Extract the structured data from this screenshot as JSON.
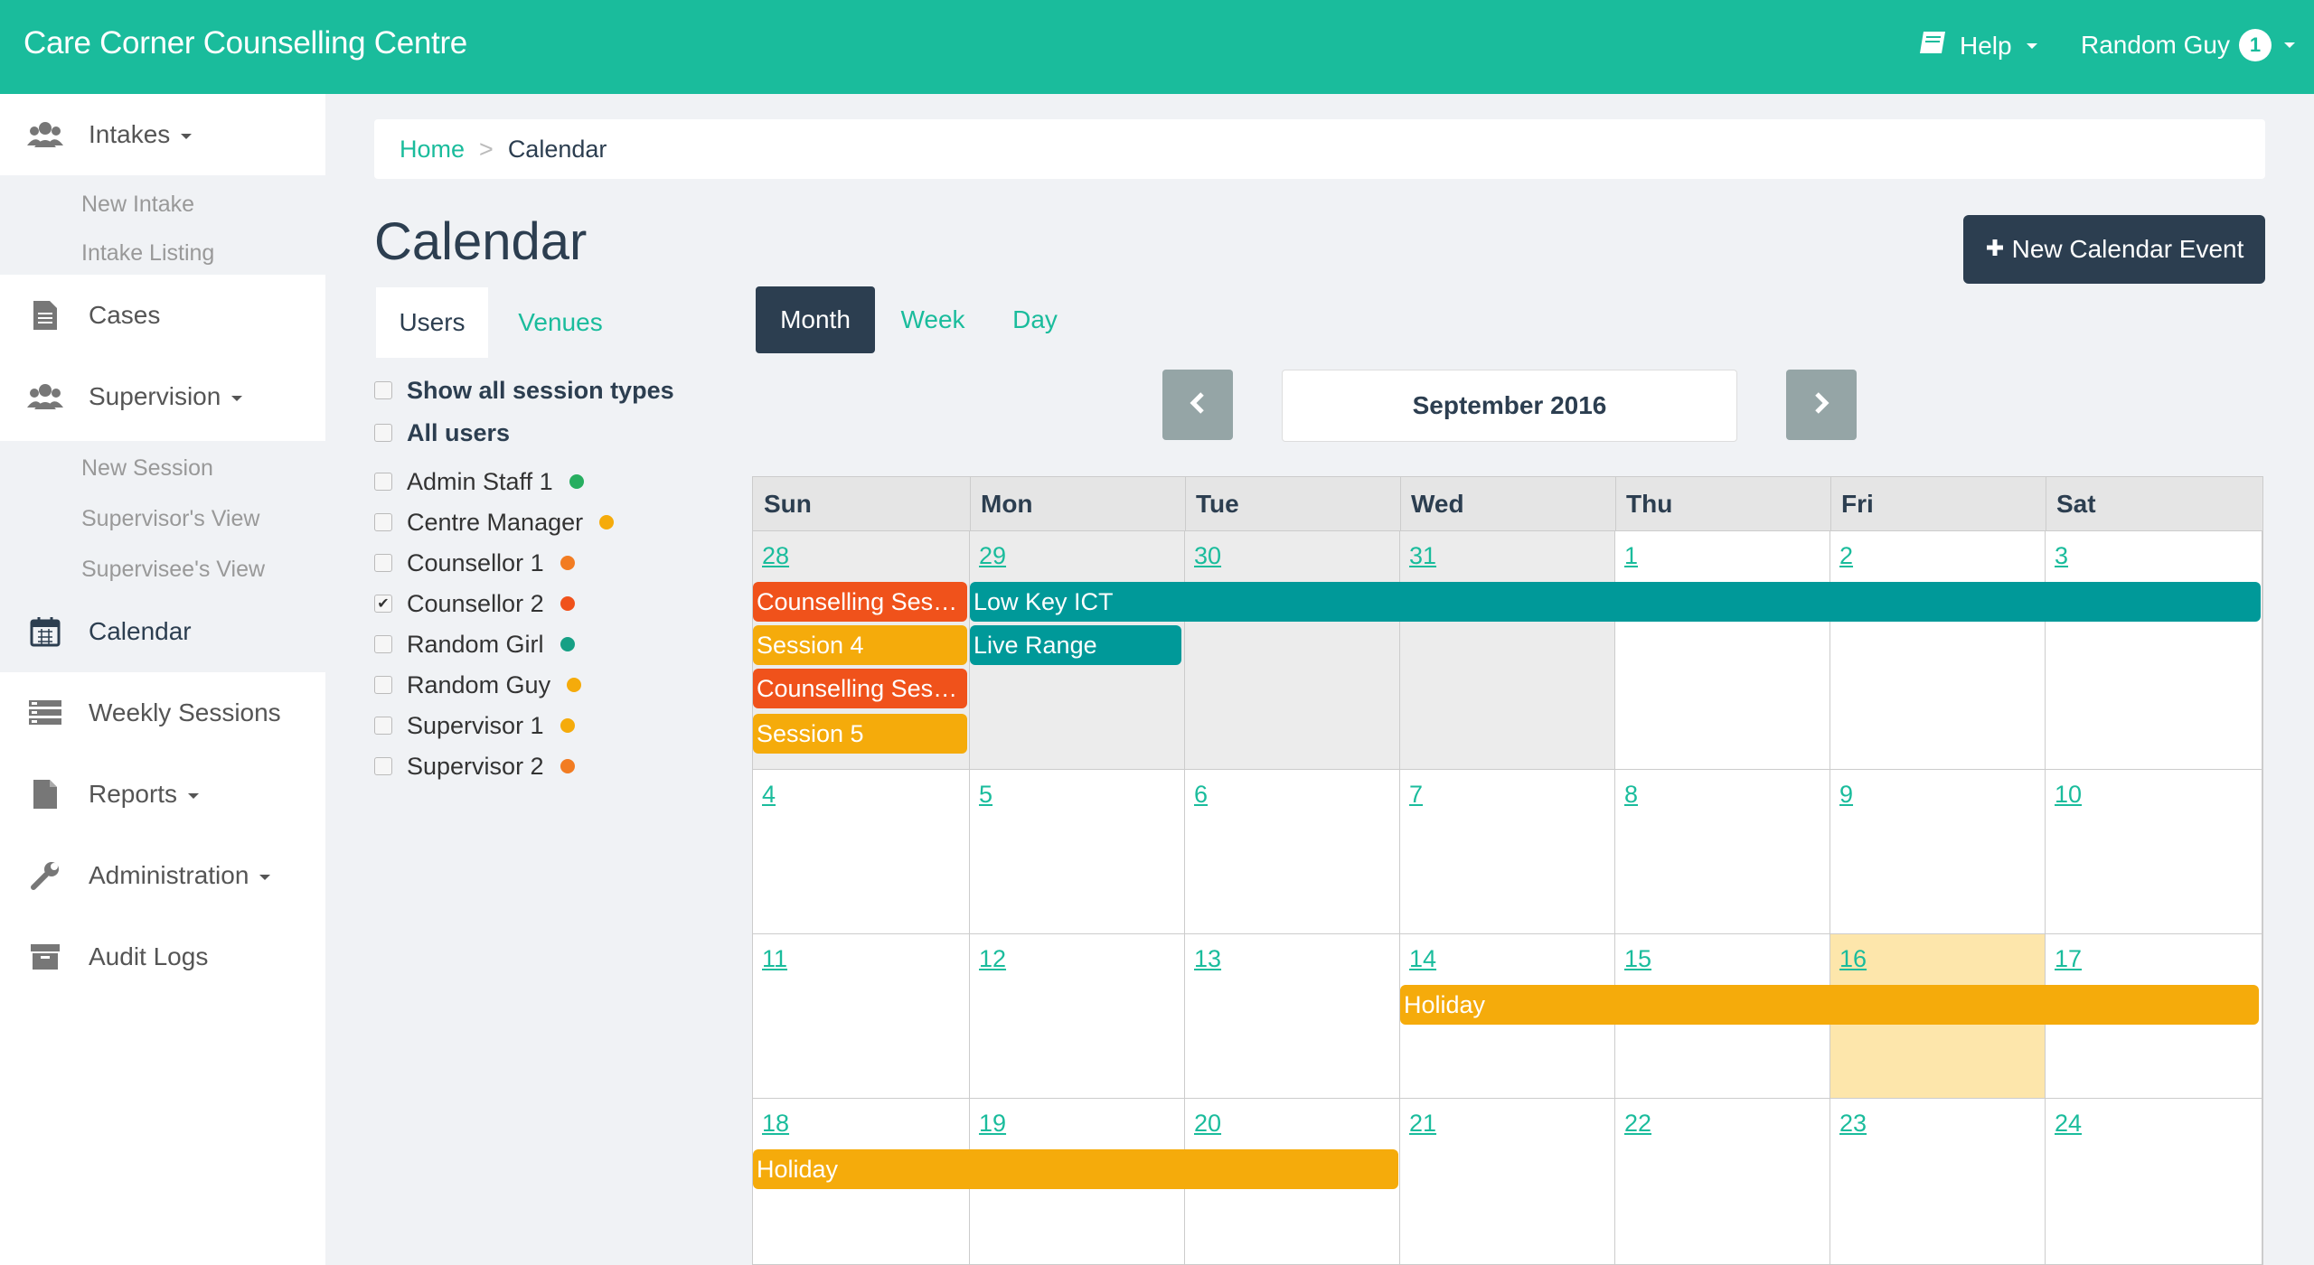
{
  "app": {
    "title": "Care Corner Counselling Centre"
  },
  "topbar": {
    "help_label": "Help",
    "user_label": "Random Guy",
    "user_badge": "1"
  },
  "sidebar": {
    "items": [
      {
        "label": "Intakes",
        "icon": "users-icon"
      },
      {
        "label": "Cases",
        "icon": "document-icon"
      },
      {
        "label": "Supervision",
        "icon": "users-icon"
      },
      {
        "label": "Calendar",
        "icon": "calendar-icon"
      },
      {
        "label": "Weekly Sessions",
        "icon": "list-icon"
      },
      {
        "label": "Reports",
        "icon": "file-icon"
      },
      {
        "label": "Administration",
        "icon": "wrench-icon"
      },
      {
        "label": "Audit Logs",
        "icon": "archive-icon"
      }
    ],
    "intake_sub": [
      "New Intake",
      "Intake Listing"
    ],
    "supervision_sub": [
      "New Session",
      "Supervisor's View",
      "Supervisee's View"
    ]
  },
  "breadcrumb": {
    "home": "Home",
    "separator": ">",
    "current": "Calendar"
  },
  "page": {
    "title": "Calendar",
    "new_event_label": "New Calendar Event"
  },
  "filter_tabs": {
    "users": "Users",
    "venues": "Venues"
  },
  "filters": {
    "show_all_session_types": "Show all session types",
    "all_users": "All users",
    "users": [
      {
        "name": "Admin Staff 1",
        "color": "#27ae60",
        "checked": false
      },
      {
        "name": "Centre Manager",
        "color": "#f5ab0b",
        "checked": false
      },
      {
        "name": "Counsellor 1",
        "color": "#f27c22",
        "checked": false
      },
      {
        "name": "Counsellor 2",
        "color": "#f0521b",
        "checked": true
      },
      {
        "name": "Random Girl",
        "color": "#16a085",
        "checked": false
      },
      {
        "name": "Random Guy",
        "color": "#f5ab0b",
        "checked": false
      },
      {
        "name": "Supervisor 1",
        "color": "#f5ab0b",
        "checked": false
      },
      {
        "name": "Supervisor 2",
        "color": "#f27c22",
        "checked": false
      }
    ]
  },
  "views": {
    "month": "Month",
    "week": "Week",
    "day": "Day",
    "active": "Month"
  },
  "calendar": {
    "month_label": "September 2016",
    "days_of_week": [
      "Sun",
      "Mon",
      "Tue",
      "Wed",
      "Thu",
      "Fri",
      "Sat"
    ],
    "weeks": [
      [
        "28",
        "29",
        "30",
        "31",
        "1",
        "2",
        "3"
      ],
      [
        "4",
        "5",
        "6",
        "7",
        "8",
        "9",
        "10"
      ],
      [
        "11",
        "12",
        "13",
        "14",
        "15",
        "16",
        "17"
      ],
      [
        "18",
        "19",
        "20",
        "21",
        "22",
        "23",
        "24"
      ]
    ],
    "today": "16",
    "events": [
      {
        "title": "Counselling Session",
        "color": "#f0521b"
      },
      {
        "title": "Session 4",
        "color": "#f5ab0b"
      },
      {
        "title": "Counselling Session",
        "color": "#f0521b"
      },
      {
        "title": "Session 5",
        "color": "#f5ab0b"
      },
      {
        "title": "Low Key ICT",
        "color": "#009999"
      },
      {
        "title": "Live Range",
        "color": "#009999"
      },
      {
        "title": "Holiday",
        "color": "#f5ab0b"
      },
      {
        "title": "Holiday",
        "color": "#f5ab0b"
      }
    ]
  },
  "colors": {
    "brand": "#1abc9c",
    "dark": "#2c3e50"
  }
}
